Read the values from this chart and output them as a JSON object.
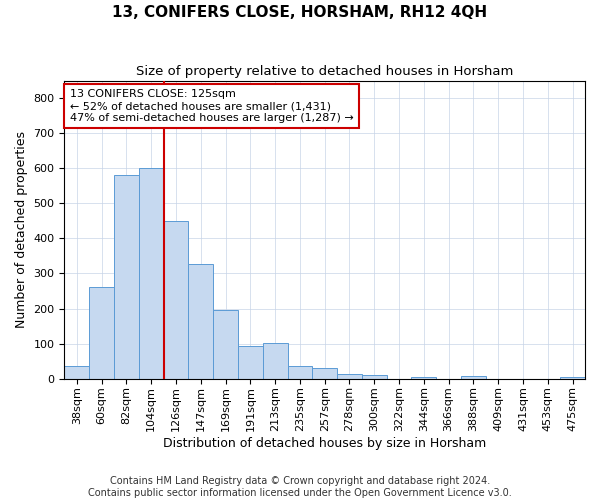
{
  "title": "13, CONIFERS CLOSE, HORSHAM, RH12 4QH",
  "subtitle": "Size of property relative to detached houses in Horsham",
  "xlabel": "Distribution of detached houses by size in Horsham",
  "ylabel": "Number of detached properties",
  "footer_line1": "Contains HM Land Registry data © Crown copyright and database right 2024.",
  "footer_line2": "Contains public sector information licensed under the Open Government Licence v3.0.",
  "categories": [
    "38sqm",
    "60sqm",
    "82sqm",
    "104sqm",
    "126sqm",
    "147sqm",
    "169sqm",
    "191sqm",
    "213sqm",
    "235sqm",
    "257sqm",
    "278sqm",
    "300sqm",
    "322sqm",
    "344sqm",
    "366sqm",
    "388sqm",
    "409sqm",
    "431sqm",
    "453sqm",
    "475sqm"
  ],
  "values": [
    37,
    262,
    580,
    602,
    450,
    328,
    196,
    92,
    103,
    37,
    30,
    14,
    11,
    0,
    5,
    0,
    7,
    0,
    0,
    0,
    5
  ],
  "bar_color": "#c6d9f0",
  "bar_edge_color": "#5b9bd5",
  "property_line_index": 4,
  "annotation_title": "13 CONIFERS CLOSE: 125sqm",
  "annotation_line1": "← 52% of detached houses are smaller (1,431)",
  "annotation_line2": "47% of semi-detached houses are larger (1,287) →",
  "annotation_box_color": "#ffffff",
  "annotation_box_edge_color": "#cc0000",
  "line_color": "#cc0000",
  "ylim": [
    0,
    850
  ],
  "yticks": [
    0,
    100,
    200,
    300,
    400,
    500,
    600,
    700,
    800
  ],
  "background_color": "#ffffff",
  "grid_color": "#c8d4e8",
  "title_fontsize": 11,
  "subtitle_fontsize": 9.5,
  "label_fontsize": 9,
  "tick_fontsize": 8,
  "footer_fontsize": 7,
  "annotation_fontsize": 8
}
